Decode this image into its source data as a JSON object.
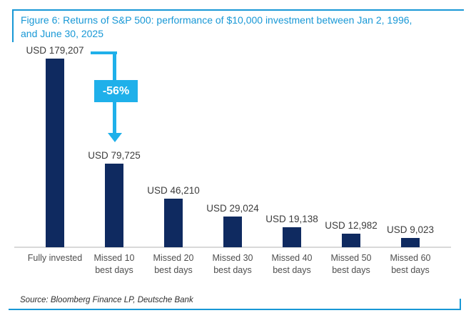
{
  "figure": {
    "title_line1": "Figure 6: Returns of S&P 500: performance of $10,000 investment between Jan 2, 1996,",
    "title_line2": "and June 30, 2025",
    "source": "Source: Bloomberg Finance LP, Deutsche Bank"
  },
  "annotation": {
    "pct_label": "-56%"
  },
  "colors": {
    "title_blue": "#1898d6",
    "arrow_cyan": "#1fb0ea",
    "bar_navy": "#0f2a60",
    "value_label": "#3c3c3c",
    "category_label": "#4f4f4f",
    "baseline": "#d9d9d9"
  },
  "chart_data": {
    "type": "bar",
    "title": "Figure 6: Returns of S&P 500: performance of $10,000 investment between Jan 2, 1996, and June 30, 2025",
    "categories": [
      "Fully invested",
      "Missed 10 best days",
      "Missed 20 best days",
      "Missed 30 best days",
      "Missed 40 best days",
      "Missed 50 best days",
      "Missed 60 best days"
    ],
    "category_lines": [
      [
        "Fully invested"
      ],
      [
        "Missed 10",
        "best days"
      ],
      [
        "Missed 20",
        "best days"
      ],
      [
        "Missed 30",
        "best days"
      ],
      [
        "Missed 40",
        "best days"
      ],
      [
        "Missed 50",
        "best days"
      ],
      [
        "Missed 60",
        "best days"
      ]
    ],
    "values": [
      179207,
      79725,
      46210,
      29024,
      19138,
      12982,
      9023
    ],
    "value_labels": [
      "USD 179,207",
      "USD 79,725",
      "USD 46,210",
      "USD 29,024",
      "USD 19,138",
      "USD 12,982",
      "USD 9,023"
    ],
    "xlabel": "",
    "ylabel": "",
    "ylim": [
      0,
      190000
    ],
    "grid": false,
    "legend": null,
    "annotation": {
      "text": "-56%",
      "from_category": "Fully invested",
      "to_category": "Missed 10 best days"
    },
    "source": "Source: Bloomberg Finance LP, Deutsche Bank"
  }
}
